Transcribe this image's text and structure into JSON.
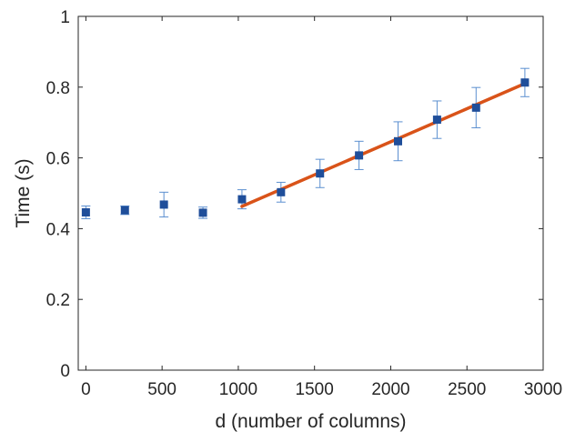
{
  "chart_data": {
    "type": "scatter",
    "title": "",
    "xlabel": "d (number of columns)",
    "ylabel": "Time (s)",
    "xlim": [
      -50,
      3000
    ],
    "ylim": [
      0,
      1
    ],
    "xticks": [
      0,
      500,
      1000,
      1500,
      2000,
      2500,
      3000
    ],
    "xtick_labels": [
      "0",
      "500",
      "1000",
      "1500",
      "2000",
      "2500",
      "3000"
    ],
    "yticks": [
      0,
      0.2,
      0.4,
      0.6,
      0.8,
      1
    ],
    "ytick_labels": [
      "0",
      "0.2",
      "0.4",
      "0.6",
      "0.8",
      "1"
    ],
    "grid": false,
    "colors": {
      "points": "#1f4e9a",
      "errorbars": "#5b8fd0",
      "fit_line": "#d95319",
      "axis": "#262626"
    },
    "series": [
      {
        "type": "scatter_errorbar",
        "x": [
          0,
          256,
          512,
          768,
          1024,
          1280,
          1536,
          1792,
          2048,
          2304,
          2560,
          2880
        ],
        "y": [
          0.446,
          0.452,
          0.468,
          0.445,
          0.483,
          0.503,
          0.556,
          0.607,
          0.647,
          0.708,
          0.742,
          0.813
        ],
        "yerr": [
          0.018,
          0.012,
          0.035,
          0.016,
          0.027,
          0.028,
          0.04,
          0.04,
          0.055,
          0.053,
          0.057,
          0.04
        ]
      },
      {
        "type": "line",
        "x": [
          1024,
          2880
        ],
        "y": [
          0.463,
          0.81
        ]
      }
    ]
  }
}
